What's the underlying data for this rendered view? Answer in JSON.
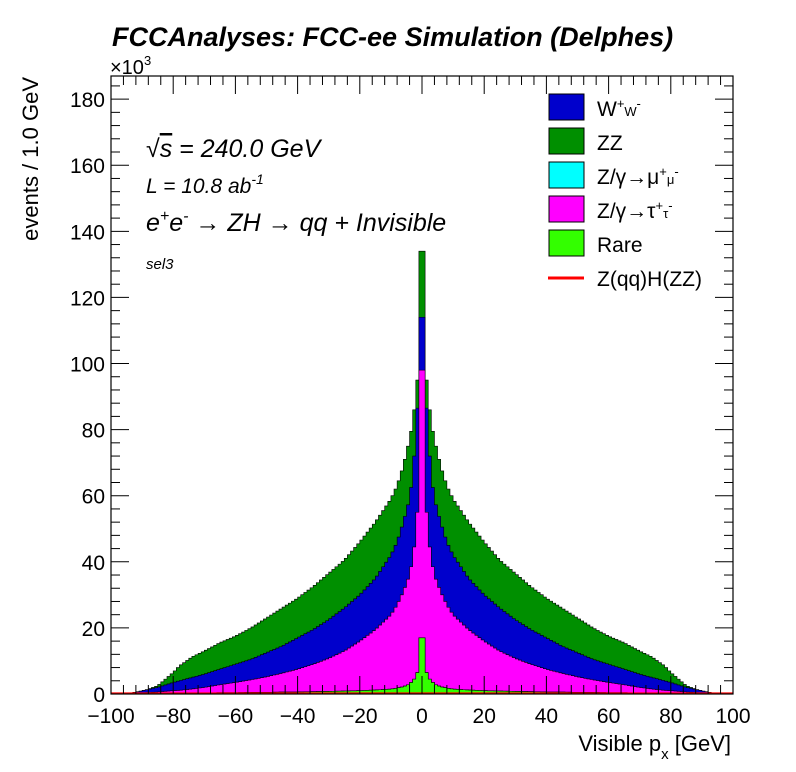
{
  "chart_data": {
    "type": "bar",
    "stacked": true,
    "title": "FCCAnalyses: FCC-ee Simulation (Delphes)",
    "xlabel": "Visible p_x [GeV]",
    "ylabel": "events / 1.0 GeV",
    "y_multiplier": "×10^3",
    "xlim": [
      -100,
      100
    ],
    "ylim": [
      0,
      187
    ],
    "xticks": [
      -100,
      -80,
      -60,
      -40,
      -20,
      0,
      20,
      40,
      60,
      80,
      100
    ],
    "yticks": [
      0,
      20,
      40,
      60,
      80,
      100,
      120,
      140,
      160,
      180
    ],
    "bin_width": 1.0,
    "annotations": {
      "sqrt_s": "√s = 240.0 GeV",
      "lumi": "L = 10.8 ab⁻¹",
      "process": "e⁺e⁻ → ZH → qq + Invisible",
      "selection": "sel3"
    },
    "legend_position": "top-right",
    "legend": [
      {
        "label": "W⁺W⁻",
        "color": "#0000cc",
        "style": "fill"
      },
      {
        "label": "ZZ",
        "color": "#008f00",
        "style": "fill"
      },
      {
        "label": "Z/γ→μ⁺μ⁻",
        "color": "#00ffff",
        "style": "fill"
      },
      {
        "label": "Z/γ→τ⁺τ⁻",
        "color": "#ff00ff",
        "style": "fill"
      },
      {
        "label": "Rare",
        "color": "#33ff00",
        "style": "fill"
      },
      {
        "label": "Z(qq)H(ZZ)",
        "color": "#ff0000",
        "style": "line"
      }
    ],
    "stack_order_bottom_to_top": [
      "Rare",
      "Z/γ→μ⁺μ⁻",
      "Z/γ→τ⁺τ⁻",
      "W⁺W⁻",
      "ZZ"
    ],
    "x": [
      -95,
      -90,
      -85,
      -80,
      -78,
      -76,
      -74,
      -70,
      -65,
      -60,
      -55,
      -50,
      -45,
      -40,
      -35,
      -30,
      -25,
      -20,
      -15,
      -10,
      -8,
      -6,
      -4,
      -3,
      -2,
      -1,
      -0.5,
      0.5,
      1,
      2,
      3,
      4,
      6,
      8,
      10,
      15,
      20,
      25,
      30,
      35,
      40,
      45,
      50,
      55,
      60,
      65,
      70,
      74,
      76,
      78,
      80,
      85,
      90,
      95
    ],
    "cumulative_tops": {
      "Rare": [
        0,
        0.1,
        0.1,
        0.2,
        0.2,
        0.2,
        0.3,
        0.3,
        0.4,
        0.4,
        0.5,
        0.5,
        0.6,
        0.6,
        0.7,
        0.8,
        0.9,
        1.0,
        1.2,
        1.5,
        1.8,
        2.2,
        3,
        4,
        5,
        8,
        17,
        17,
        8,
        5,
        4,
        3,
        2.2,
        1.8,
        1.5,
        1.2,
        1.0,
        0.9,
        0.8,
        0.7,
        0.6,
        0.6,
        0.5,
        0.5,
        0.4,
        0.4,
        0.3,
        0.3,
        0.2,
        0.2,
        0.2,
        0.1,
        0.1,
        0
      ],
      "Z/γ→μ⁺μ⁻": [
        0,
        0.1,
        0.1,
        0.2,
        0.2,
        0.2,
        0.3,
        0.3,
        0.4,
        0.4,
        0.5,
        0.5,
        0.6,
        0.6,
        0.7,
        0.8,
        0.9,
        1.0,
        1.2,
        1.5,
        1.8,
        2.2,
        3,
        4,
        5,
        8,
        17,
        17,
        8,
        5,
        4,
        3,
        2.2,
        1.8,
        1.5,
        1.2,
        1.0,
        0.9,
        0.8,
        0.7,
        0.6,
        0.6,
        0.5,
        0.5,
        0.4,
        0.4,
        0.3,
        0.3,
        0.2,
        0.2,
        0.2,
        0.1,
        0.1,
        0
      ],
      "Z/γ→τ⁺τ⁻": [
        0,
        0.3,
        0.6,
        1.0,
        1.1,
        1.3,
        1.5,
        2.0,
        2.8,
        3.5,
        4.3,
        5.2,
        6.3,
        7.5,
        9.0,
        10.8,
        13,
        16,
        19.5,
        24,
        27,
        31,
        36,
        41,
        48,
        62,
        98,
        98,
        62,
        48,
        41,
        36,
        31,
        27,
        24,
        19.5,
        16,
        13,
        10.8,
        9.0,
        7.5,
        6.3,
        5.2,
        4.3,
        3.5,
        2.8,
        2.0,
        1.5,
        1.3,
        1.1,
        1.0,
        0.6,
        0.3,
        0
      ],
      "W⁺W⁻": [
        0,
        1.0,
        2.0,
        3.5,
        4.0,
        4.5,
        5.0,
        6.0,
        7.5,
        9.0,
        10.5,
        12.5,
        14.5,
        17,
        19.5,
        22.5,
        26,
        30,
        35,
        42,
        46,
        52,
        59,
        66,
        78,
        95,
        114,
        114,
        95,
        78,
        66,
        59,
        52,
        46,
        42,
        35,
        30,
        26,
        22.5,
        19.5,
        17,
        14.5,
        12.5,
        10.5,
        9.0,
        7.5,
        6.0,
        5.0,
        4.5,
        4.0,
        3.5,
        2.0,
        1.0,
        0
      ],
      "ZZ": [
        0,
        0.8,
        2.5,
        6.5,
        8.5,
        9.8,
        11.2,
        13,
        15.5,
        17.5,
        20,
        23,
        26,
        29,
        32.5,
        36.5,
        40.5,
        46,
        52,
        59,
        63,
        69,
        77,
        82,
        90,
        100,
        134,
        134,
        100,
        90,
        82,
        77,
        69,
        63,
        59,
        52,
        46,
        40.5,
        36.5,
        32.5,
        29,
        26,
        23,
        20,
        17.5,
        15.5,
        13,
        11.2,
        9.8,
        8.5,
        6.5,
        2.5,
        0.8,
        0
      ]
    },
    "signal_line": {
      "label": "Z(qq)H(ZZ)",
      "values_note": "near zero across range",
      "max": 0.3
    }
  }
}
